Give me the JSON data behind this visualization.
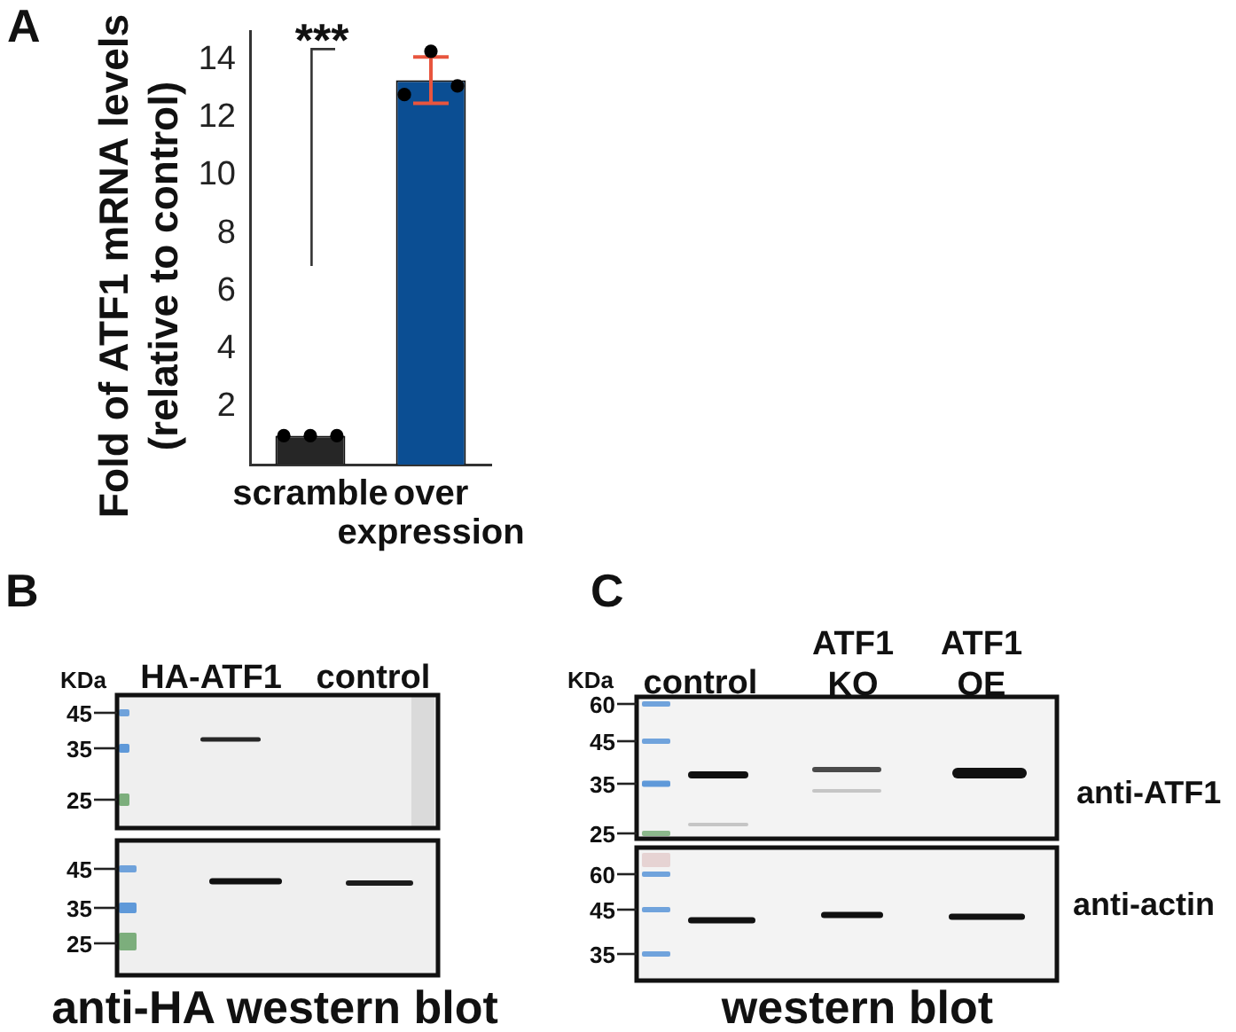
{
  "chart_data": [
    {
      "type": "bar",
      "annotations": [
        "A",
        "***"
      ],
      "ylabel": "Fold of ATF1 mRNA levels\n(relative to control)",
      "categories": [
        "scramble",
        "over\nexpression"
      ],
      "series": [
        {
          "type": "bar",
          "colors": [
            "#262626",
            "#0b4e93"
          ],
          "values": [
            1.0,
            13.3
          ],
          "errors": [
            null,
            0.8
          ]
        },
        {
          "type": "scatter",
          "color": "#000000",
          "x": [
            "scramble",
            "scramble",
            "scramble",
            "over\nexpression",
            "over\nexpression",
            "over\nexpression"
          ],
          "values": [
            1.0,
            1.0,
            1.0,
            12.8,
            14.3,
            13.1
          ]
        }
      ],
      "ylim": [
        0,
        15
      ],
      "yticks": [
        2,
        4,
        6,
        8,
        10,
        12,
        14
      ],
      "marker": "circle"
    },
    {
      "type": "other",
      "title": "anti-HA western blot",
      "annotations": [
        "B",
        "KDa",
        "HA-ATF1",
        "control",
        "45",
        "35",
        "25",
        "45",
        "35",
        "25"
      ]
    },
    {
      "type": "other",
      "title": "western blot",
      "annotations": [
        "C",
        "KDa",
        "control",
        "ATF1\nKO",
        "ATF1\nOE",
        "60",
        "45",
        "35",
        "25",
        "60",
        "45",
        "35",
        "anti-ATF1",
        "anti-actin"
      ]
    }
  ]
}
